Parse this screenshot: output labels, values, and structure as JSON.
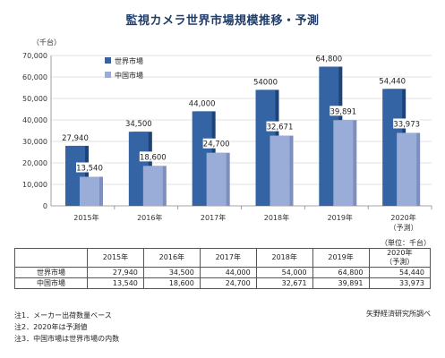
{
  "chart_data": {
    "type": "bar",
    "title": "監視カメラ世界市場規模推移・予測",
    "ylabel": "（千台）",
    "categories": [
      "2015年",
      "2016年",
      "2017年",
      "2018年",
      "2019年",
      "2020年"
    ],
    "category_sub": [
      "",
      "",
      "",
      "",
      "",
      "（予測）"
    ],
    "ylim": [
      0,
      70000
    ],
    "yticks": [
      "0",
      "10,000",
      "20,000",
      "30,000",
      "40,000",
      "50,000",
      "60,000",
      "70,000"
    ],
    "grid": true,
    "legend": "top-left",
    "series": [
      {
        "name": "世界市場",
        "color": "#3464a3",
        "values": [
          27940,
          34500,
          44000,
          54000,
          64800,
          54440
        ],
        "labels": [
          "27,940",
          "34,500",
          "44,000",
          "54000",
          "64,800",
          "54,440"
        ]
      },
      {
        "name": "中国市場",
        "color": "#9aacd8",
        "values": [
          13540,
          18600,
          24700,
          32671,
          39891,
          33973
        ],
        "labels": [
          "13,540",
          "18,600",
          "24,700",
          "32,671",
          "39,891",
          "33,973"
        ]
      }
    ]
  },
  "table": {
    "unit": "（単位：千台）",
    "headers": [
      "2015年",
      "2016年",
      "2017年",
      "2018年",
      "2019年"
    ],
    "header_last": "2020年",
    "header_last_sub": "（予測）",
    "rows": [
      {
        "label": "世界市場",
        "cells": [
          "27,940",
          "34,500",
          "44,000",
          "54,000",
          "64,800",
          "54,440"
        ]
      },
      {
        "label": "中国市場",
        "cells": [
          "13,540",
          "18,600",
          "24,700",
          "32,671",
          "39,891",
          "33,973"
        ]
      }
    ]
  },
  "source": "矢野経済研究所調べ",
  "notes": [
    "注1．メーカー出荷数量ベース",
    "注2．2020年は予測値",
    "注3．中国市場は世界市場の内数"
  ]
}
